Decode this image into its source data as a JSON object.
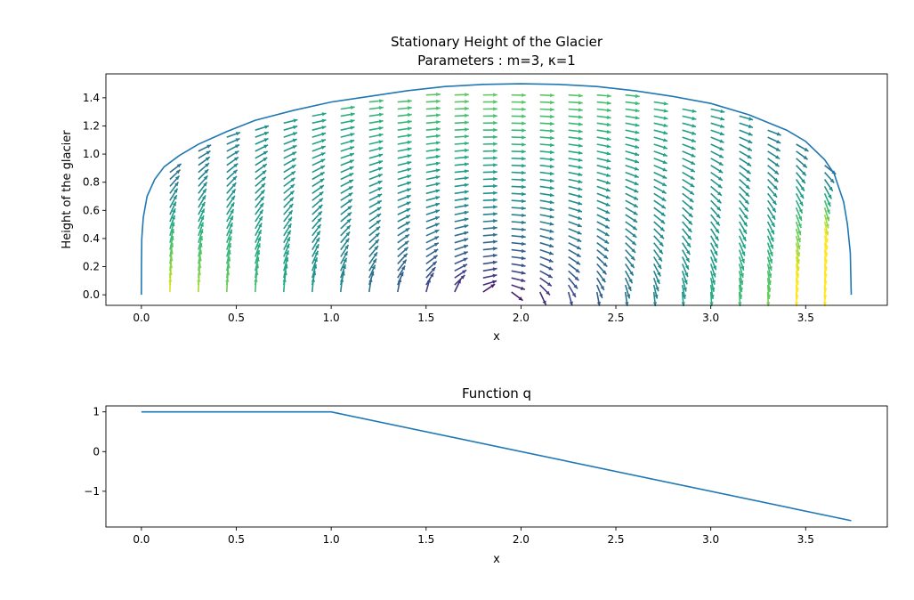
{
  "chart_data": [
    {
      "type": "line",
      "title_line1": "Stationary Height of the Glacier",
      "title_line2": "Parameters : m=3, κ=1",
      "xlabel": "x",
      "ylabel": "Height of the glacier",
      "xlim": [
        -0.187,
        3.93
      ],
      "ylim": [
        -0.075,
        1.57
      ],
      "xticks": [
        "0.0",
        "0.5",
        "1.0",
        "1.5",
        "2.0",
        "2.5",
        "3.0",
        "3.5"
      ],
      "xtick_values": [
        0,
        0.5,
        1.0,
        1.5,
        2.0,
        2.5,
        3.0,
        3.5
      ],
      "yticks": [
        "0.0",
        "0.2",
        "0.4",
        "0.6",
        "0.8",
        "1.0",
        "1.2",
        "1.4"
      ],
      "ytick_values": [
        0,
        0.2,
        0.4,
        0.6,
        0.8,
        1.0,
        1.2,
        1.4
      ],
      "series": [
        {
          "x": [
            0,
            0.0003,
            0.002,
            0.01,
            0.03,
            0.07,
            0.12,
            0.2,
            0.3,
            0.45,
            0.6,
            0.8,
            1.0,
            1.2,
            1.4,
            1.6,
            1.8,
            2.0,
            2.2,
            2.4,
            2.6,
            2.8,
            3.0,
            3.2,
            3.4,
            3.5,
            3.6,
            3.65,
            3.7,
            3.72,
            3.735,
            3.74
          ],
          "y": [
            0,
            0.2,
            0.4,
            0.55,
            0.7,
            0.82,
            0.91,
            0.99,
            1.07,
            1.16,
            1.24,
            1.31,
            1.37,
            1.41,
            1.45,
            1.48,
            1.495,
            1.5,
            1.495,
            1.48,
            1.45,
            1.41,
            1.36,
            1.28,
            1.17,
            1.09,
            0.96,
            0.86,
            0.66,
            0.5,
            0.3,
            0
          ]
        }
      ],
      "line_color": "#1f77b4",
      "quiver": {
        "colormap": "viridis",
        "x_positions": [
          0.15,
          0.3,
          0.45,
          0.6,
          0.75,
          0.9,
          1.05,
          1.2,
          1.35,
          1.5,
          1.65,
          1.8,
          1.95,
          2.1,
          2.25,
          2.4,
          2.55,
          2.7,
          2.85,
          3.0,
          3.15,
          3.3,
          3.45,
          3.6
        ],
        "y_step": 0.05
      }
    },
    {
      "type": "line",
      "title": "Function q",
      "xlabel": "x",
      "xlim": [
        -0.187,
        3.93
      ],
      "ylim": [
        -1.9,
        1.15
      ],
      "xticks": [
        "0.0",
        "0.5",
        "1.0",
        "1.5",
        "2.0",
        "2.5",
        "3.0",
        "3.5"
      ],
      "xtick_values": [
        0,
        0.5,
        1.0,
        1.5,
        2.0,
        2.5,
        3.0,
        3.5
      ],
      "yticks": [
        "1",
        "0",
        "−1"
      ],
      "ytick_values": [
        1,
        0,
        -1
      ],
      "series": [
        {
          "x": [
            0,
            1.0,
            3.74
          ],
          "y": [
            1,
            1,
            -1.74
          ]
        }
      ],
      "line_color": "#1f77b4"
    }
  ]
}
